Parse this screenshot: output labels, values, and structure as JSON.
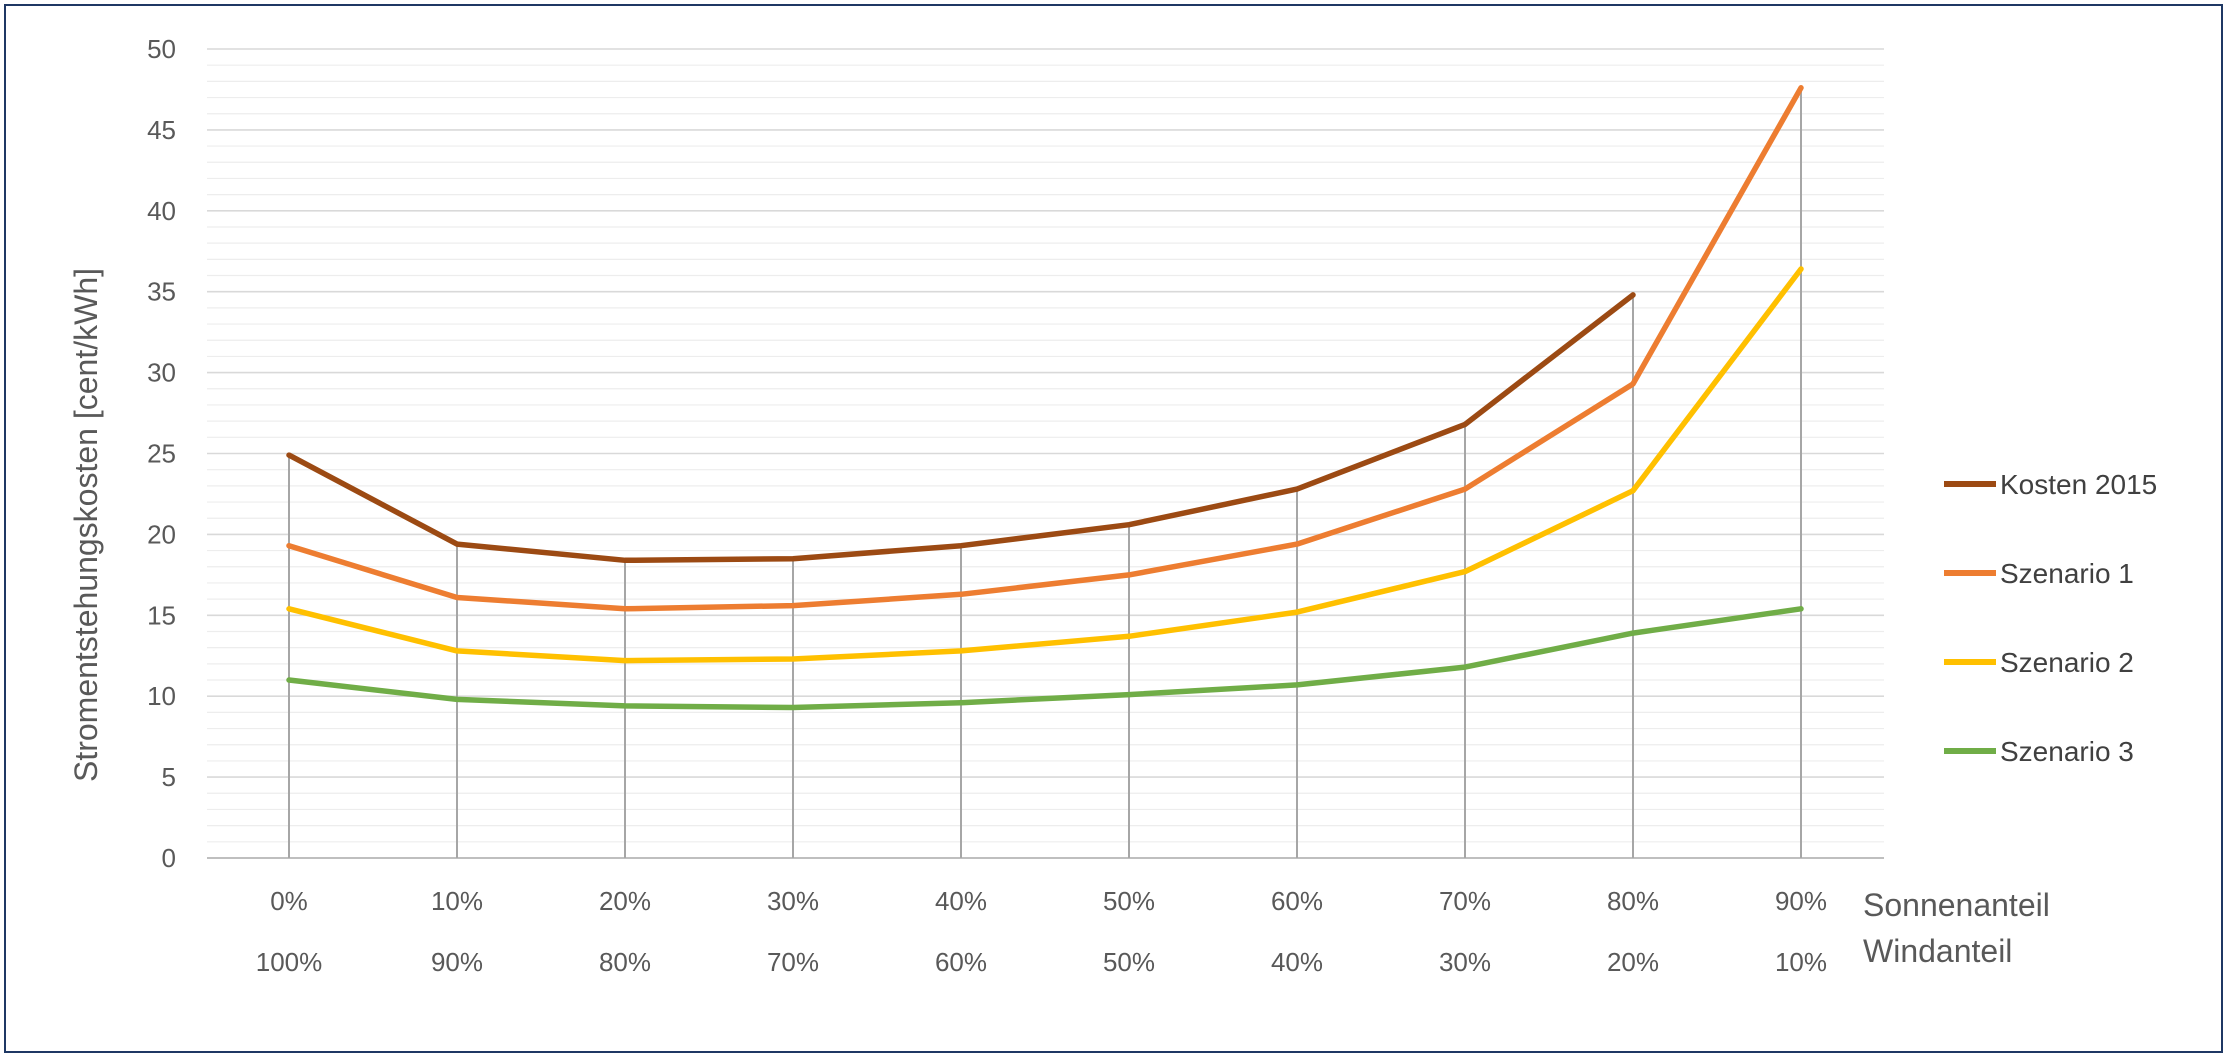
{
  "chart_data": {
    "type": "line",
    "title": "",
    "ylabel": "Stromentstehungskosten [cent/kWh]",
    "xlabel": "Sonnenanteil",
    "xlabel_secondary": "Windanteil",
    "ylim": [
      0,
      50
    ],
    "ytick_step": 5,
    "yticks": [
      "0",
      "5",
      "10",
      "15",
      "20",
      "25",
      "30",
      "35",
      "40",
      "45",
      "50"
    ],
    "categories": [
      "0%",
      "10%",
      "20%",
      "30%",
      "40%",
      "50%",
      "60%",
      "70%",
      "80%",
      "90%"
    ],
    "categories_secondary": [
      "100%",
      "90%",
      "80%",
      "70%",
      "60%",
      "50%",
      "40%",
      "30%",
      "20%",
      "10%"
    ],
    "grid": true,
    "drop_lines": true,
    "legend_position": "right",
    "series": [
      {
        "name": "Kosten 2015",
        "color": "#9c4a13",
        "values": [
          24.9,
          19.4,
          18.4,
          18.5,
          19.3,
          20.6,
          22.8,
          26.8,
          34.8,
          null
        ]
      },
      {
        "name": "Szenario 1",
        "color": "#ed7d31",
        "values": [
          19.3,
          16.1,
          15.4,
          15.6,
          16.3,
          17.5,
          19.4,
          22.8,
          29.3,
          47.6
        ]
      },
      {
        "name": "Szenario 2",
        "color": "#ffc000",
        "values": [
          15.4,
          12.8,
          12.2,
          12.3,
          12.8,
          13.7,
          15.2,
          17.7,
          22.7,
          36.4
        ]
      },
      {
        "name": "Szenario 3",
        "color": "#70ad47",
        "values": [
          11.0,
          9.8,
          9.4,
          9.3,
          9.6,
          10.1,
          10.7,
          11.8,
          13.9,
          15.4
        ]
      }
    ]
  }
}
